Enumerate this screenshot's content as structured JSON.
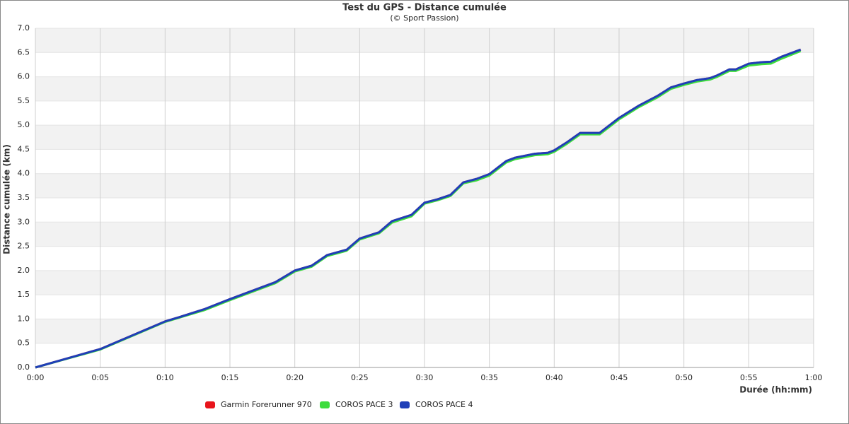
{
  "chart_data": {
    "type": "line",
    "title": "Test du GPS - Distance cumulée",
    "subtitle": "(© Sport Passion)",
    "x_label": "Durée (hh:mm)",
    "y_label": "Distance cumulée (km)",
    "x": [
      0,
      5,
      10,
      11,
      13,
      15,
      18.5,
      20,
      21.3,
      22.5,
      24,
      25,
      26.5,
      27.5,
      29,
      30,
      31,
      32,
      33,
      34,
      35,
      36.3,
      37,
      38.5,
      39.5,
      40,
      41,
      42,
      43.5,
      45,
      46.5,
      48,
      49,
      50,
      51,
      52,
      52.5,
      53.5,
      54,
      55,
      56,
      56.7,
      57.5,
      59
    ],
    "series": [
      {
        "name": "Garmin Forerunner 970",
        "color": "#e8141c",
        "values": [
          0,
          0.38,
          0.95,
          1.03,
          1.2,
          1.41,
          1.76,
          2.0,
          2.1,
          2.32,
          2.43,
          2.66,
          2.79,
          3.02,
          3.15,
          3.4,
          3.47,
          3.56,
          3.82,
          3.89,
          3.99,
          4.26,
          4.33,
          4.41,
          4.43,
          4.48,
          4.65,
          4.84,
          4.84,
          5.15,
          5.4,
          5.61,
          5.78,
          5.86,
          5.93,
          5.97,
          6.02,
          6.15,
          6.15,
          6.27,
          6.3,
          6.31,
          6.41,
          6.56
        ]
      },
      {
        "name": "COROS PACE 3",
        "color": "#3ddc3d",
        "values": [
          0,
          0.37,
          0.94,
          1.02,
          1.18,
          1.39,
          1.74,
          1.98,
          2.08,
          2.3,
          2.41,
          2.64,
          2.77,
          2.99,
          3.12,
          3.38,
          3.45,
          3.54,
          3.8,
          3.86,
          3.96,
          4.23,
          4.3,
          4.38,
          4.4,
          4.45,
          4.62,
          4.81,
          4.81,
          5.12,
          5.37,
          5.58,
          5.75,
          5.83,
          5.9,
          5.94,
          5.99,
          6.12,
          6.12,
          6.23,
          6.26,
          6.27,
          6.37,
          6.53
        ]
      },
      {
        "name": "COROS PACE 4",
        "color": "#1f3fb8",
        "values": [
          0,
          0.38,
          0.95,
          1.03,
          1.2,
          1.41,
          1.76,
          2.0,
          2.1,
          2.32,
          2.43,
          2.66,
          2.79,
          3.02,
          3.15,
          3.4,
          3.47,
          3.56,
          3.82,
          3.89,
          3.99,
          4.26,
          4.33,
          4.41,
          4.43,
          4.48,
          4.65,
          4.84,
          4.84,
          5.15,
          5.4,
          5.61,
          5.78,
          5.86,
          5.93,
          5.97,
          6.02,
          6.15,
          6.15,
          6.27,
          6.3,
          6.31,
          6.41,
          6.56
        ]
      }
    ],
    "xlim": [
      0,
      60
    ],
    "xticks": [
      {
        "value": 0,
        "label": "0:00"
      },
      {
        "value": 5,
        "label": "0:05"
      },
      {
        "value": 10,
        "label": "0:10"
      },
      {
        "value": 15,
        "label": "0:15"
      },
      {
        "value": 20,
        "label": "0:20"
      },
      {
        "value": 25,
        "label": "0:25"
      },
      {
        "value": 30,
        "label": "0:30"
      },
      {
        "value": 35,
        "label": "0:35"
      },
      {
        "value": 40,
        "label": "0:40"
      },
      {
        "value": 45,
        "label": "0:45"
      },
      {
        "value": 50,
        "label": "0:50"
      },
      {
        "value": 55,
        "label": "0:55"
      },
      {
        "value": 60,
        "label": "1:00"
      }
    ],
    "ylim": [
      0,
      7
    ],
    "yticks": [
      {
        "value": 0,
        "label": "0.0"
      },
      0.5,
      {
        "value": 1,
        "label": "1.0"
      },
      1.5,
      {
        "value": 2,
        "label": "2.0"
      },
      2.5,
      {
        "value": 3,
        "label": "3.0"
      },
      3.5,
      {
        "value": 4,
        "label": "4.0"
      },
      4.5,
      {
        "value": 5,
        "label": "5.0"
      },
      5.5,
      {
        "value": 6,
        "label": "6.0"
      },
      6.5,
      {
        "value": 7,
        "label": "7.0"
      }
    ],
    "grid": true,
    "legend": "bottom"
  }
}
